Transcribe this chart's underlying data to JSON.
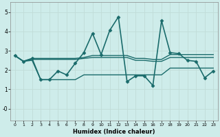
{
  "xlabel": "Humidex (Indice chaleur)",
  "x_ticks": [
    0,
    1,
    2,
    3,
    4,
    5,
    6,
    7,
    8,
    9,
    10,
    11,
    12,
    13,
    14,
    15,
    16,
    17,
    18,
    19,
    20,
    21,
    22,
    23
  ],
  "xlim": [
    -0.5,
    23.5
  ],
  "ylim": [
    -0.6,
    5.5
  ],
  "y_ticks": [
    0,
    1,
    2,
    3,
    4,
    5
  ],
  "y_tick_labels": [
    "-0",
    "1",
    "2",
    "3",
    "4",
    "5"
  ],
  "bg_color": "#ceecea",
  "grid_color": "#c0dcd8",
  "line_color": "#1a6b6b",
  "series": [
    {
      "x": [
        0,
        1,
        2,
        3,
        4,
        5,
        6,
        7,
        8,
        9,
        10,
        11,
        12,
        13,
        14,
        15,
        16,
        17,
        18,
        19,
        20,
        21,
        22,
        23
      ],
      "y": [
        2.75,
        2.45,
        2.6,
        1.5,
        1.5,
        1.95,
        1.75,
        2.35,
        2.9,
        3.9,
        2.8,
        4.05,
        4.75,
        1.4,
        1.7,
        1.7,
        1.2,
        4.55,
        2.9,
        2.85,
        2.5,
        2.45,
        1.6,
        1.95
      ],
      "marker": "D",
      "markersize": 2.5,
      "linewidth": 1.2
    },
    {
      "x": [
        0,
        1,
        2,
        3,
        4,
        5,
        6,
        7,
        8,
        9,
        10,
        11,
        12,
        13,
        14,
        15,
        16,
        17,
        18,
        19,
        20,
        21,
        22,
        23
      ],
      "y": [
        2.75,
        2.45,
        2.6,
        2.6,
        2.6,
        2.6,
        2.6,
        2.6,
        2.65,
        2.75,
        2.75,
        2.75,
        2.75,
        2.75,
        2.6,
        2.6,
        2.55,
        2.55,
        2.8,
        2.8,
        2.8,
        2.8,
        2.8,
        2.8
      ],
      "marker": null,
      "markersize": 0,
      "linewidth": 1.0
    },
    {
      "x": [
        0,
        1,
        2,
        3,
        4,
        5,
        6,
        7,
        8,
        9,
        10,
        11,
        12,
        13,
        14,
        15,
        16,
        17,
        18,
        19,
        20,
        21,
        22,
        23
      ],
      "y": [
        2.75,
        2.45,
        2.55,
        2.55,
        2.55,
        2.55,
        2.55,
        2.55,
        2.6,
        2.65,
        2.65,
        2.65,
        2.65,
        2.65,
        2.5,
        2.5,
        2.45,
        2.45,
        2.65,
        2.65,
        2.65,
        2.65,
        2.65,
        2.65
      ],
      "marker": null,
      "markersize": 0,
      "linewidth": 1.0
    },
    {
      "x": [
        0,
        1,
        2,
        3,
        4,
        5,
        6,
        7,
        8,
        9,
        10,
        11,
        12,
        13,
        14,
        15,
        16,
        17,
        18,
        19,
        20,
        21,
        22,
        23
      ],
      "y": [
        2.75,
        2.45,
        2.5,
        1.5,
        1.5,
        1.5,
        1.5,
        1.5,
        1.75,
        1.75,
        1.75,
        1.75,
        1.75,
        1.75,
        1.75,
        1.75,
        1.75,
        1.75,
        2.1,
        2.1,
        2.1,
        2.1,
        2.1,
        2.1
      ],
      "marker": null,
      "markersize": 0,
      "linewidth": 1.0
    }
  ]
}
